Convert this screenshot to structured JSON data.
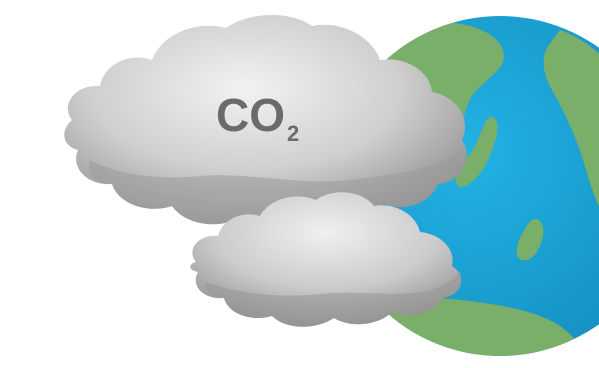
{
  "illustration": {
    "label_main": "CO",
    "label_subscript": "2",
    "colors": {
      "background": "#ffffff",
      "ocean": "#1aa9dc",
      "ocean_shadow": "#1590c2",
      "land": "#7ab06a",
      "land_dark": "#679b59",
      "cloud_light": "#e9e9e9",
      "cloud_mid": "#c4c4c4",
      "cloud_dark": "#8f8f8f",
      "label_text": "#6b6b6b"
    },
    "icons": {
      "globe": "earth-globe-icon",
      "upper_cloud": "cloud-icon",
      "lower_cloud": "cloud-icon"
    }
  }
}
